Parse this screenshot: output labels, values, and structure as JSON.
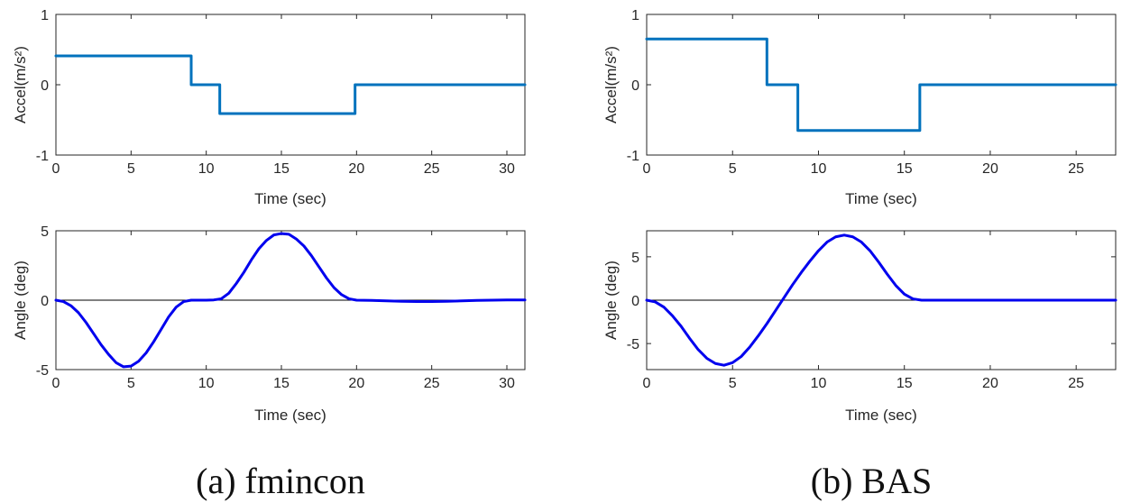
{
  "colors": {
    "accel_line": "#0072BD",
    "angle_line": "#0000EE",
    "axis": "#262626",
    "zero_line": "#000000"
  },
  "panels": [
    {
      "caption": "(a)  fmincon",
      "accel": {
        "type": "line",
        "xlabel": "Time (sec)",
        "ylabel": "Accel(m/s²)",
        "xlim": [
          0,
          31.2
        ],
        "ylim": [
          -1,
          1
        ],
        "xticks": [
          0,
          5,
          10,
          15,
          20,
          25,
          30
        ],
        "yticks": [
          -1,
          0,
          1
        ],
        "x": [
          0,
          9.0,
          9.0,
          10.9,
          10.9,
          19.9,
          19.9,
          31.2
        ],
        "y": [
          0.41,
          0.41,
          0,
          0,
          -0.41,
          -0.41,
          0,
          0
        ]
      },
      "angle": {
        "type": "line",
        "xlabel": "Time (sec)",
        "ylabel": "Angle (deg)",
        "xlim": [
          0,
          31.2
        ],
        "ylim": [
          -5,
          5
        ],
        "xticks": [
          0,
          5,
          10,
          15,
          20,
          25,
          30
        ],
        "yticks": [
          -5,
          0,
          5
        ],
        "x": [
          0,
          0.5,
          1,
          1.5,
          2,
          2.5,
          3,
          3.5,
          4,
          4.5,
          5,
          5.5,
          6,
          6.5,
          7,
          7.5,
          8,
          8.5,
          9,
          9.5,
          10,
          10.5,
          11,
          11.5,
          12,
          12.5,
          13,
          13.5,
          14,
          14.5,
          15,
          15.5,
          16,
          16.5,
          17,
          17.5,
          18,
          18.5,
          19,
          19.5,
          20,
          21,
          22,
          23,
          24,
          25,
          26,
          27,
          28,
          29,
          30,
          31.2
        ],
        "y": [
          0,
          -0.1,
          -0.4,
          -0.9,
          -1.6,
          -2.4,
          -3.2,
          -3.9,
          -4.5,
          -4.8,
          -4.75,
          -4.4,
          -3.8,
          -3.0,
          -2.1,
          -1.2,
          -0.5,
          -0.1,
          0,
          0,
          0,
          0.02,
          0.1,
          0.5,
          1.2,
          2.0,
          2.9,
          3.7,
          4.3,
          4.7,
          4.8,
          4.75,
          4.4,
          3.9,
          3.2,
          2.4,
          1.6,
          0.9,
          0.4,
          0.1,
          0,
          -0.02,
          -0.05,
          -0.08,
          -0.1,
          -0.1,
          -0.08,
          -0.05,
          -0.02,
          0,
          0.02,
          0.02
        ]
      },
      "zero_line": true
    },
    {
      "caption": "(b)  BAS",
      "accel": {
        "type": "line",
        "xlabel": "Time (sec)",
        "ylabel": "Accel(m/s²)",
        "xlim": [
          0,
          27.3
        ],
        "ylim": [
          -1,
          1
        ],
        "xticks": [
          0,
          5,
          10,
          15,
          20,
          25
        ],
        "yticks": [
          -1,
          0,
          1
        ],
        "x": [
          0,
          7.0,
          7.0,
          8.8,
          8.8,
          15.9,
          15.9,
          27.3
        ],
        "y": [
          0.65,
          0.65,
          0,
          0,
          -0.65,
          -0.65,
          0,
          0
        ]
      },
      "angle": {
        "type": "line",
        "xlabel": "Time (sec)",
        "ylabel": "Angle (deg)",
        "xlim": [
          0,
          27.3
        ],
        "ylim": [
          -8,
          8
        ],
        "xticks": [
          0,
          5,
          10,
          15,
          20,
          25
        ],
        "yticks": [
          -5,
          0,
          5
        ],
        "x": [
          0,
          0.5,
          1,
          1.5,
          2,
          2.5,
          3,
          3.5,
          4,
          4.5,
          5,
          5.5,
          6,
          6.5,
          7,
          7.5,
          8,
          8.5,
          9,
          9.5,
          10,
          10.5,
          11,
          11.5,
          12,
          12.5,
          13,
          13.5,
          14,
          14.5,
          15,
          15.5,
          16,
          17,
          18,
          20,
          22,
          24,
          26,
          27.3
        ],
        "y": [
          0,
          -0.2,
          -0.8,
          -1.8,
          -3.0,
          -4.4,
          -5.7,
          -6.7,
          -7.3,
          -7.5,
          -7.2,
          -6.5,
          -5.4,
          -4.1,
          -2.7,
          -1.2,
          0.3,
          1.8,
          3.2,
          4.5,
          5.7,
          6.7,
          7.3,
          7.5,
          7.3,
          6.7,
          5.7,
          4.4,
          3.0,
          1.7,
          0.7,
          0.15,
          0,
          0,
          0,
          0,
          0,
          0,
          0,
          0
        ]
      },
      "zero_line": true
    }
  ]
}
